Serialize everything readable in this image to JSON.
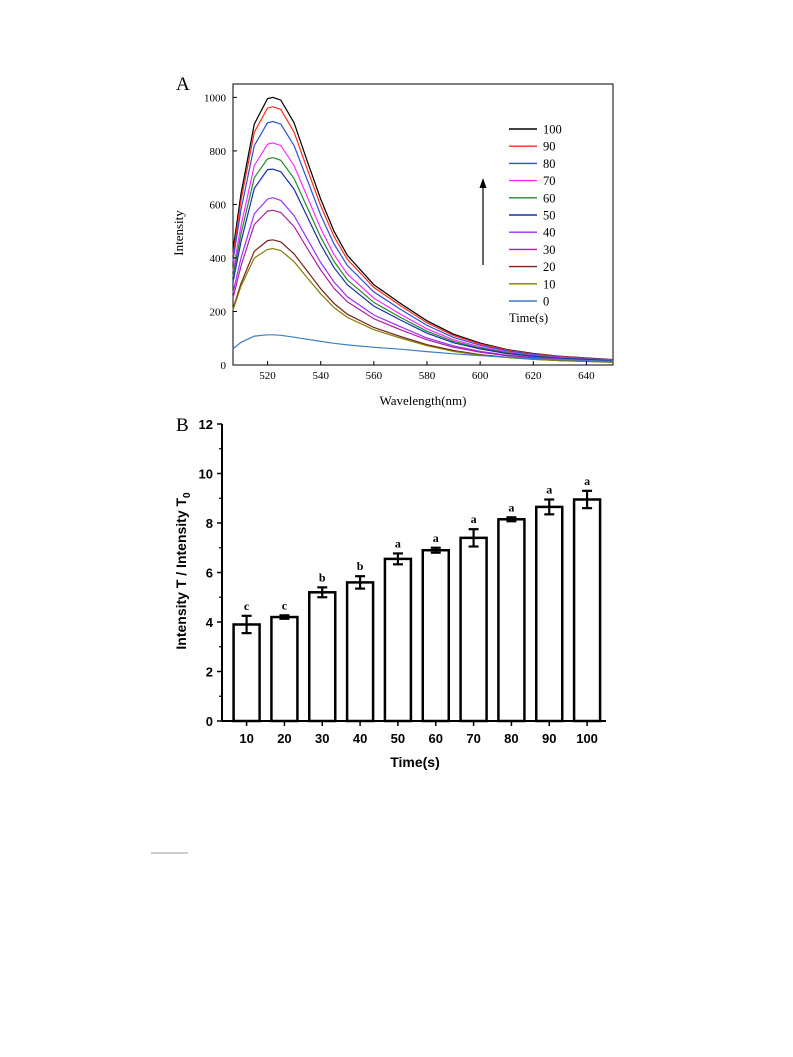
{
  "chart_data": [
    {
      "panel_label": "A",
      "type": "line",
      "xlabel": "Wavelength(nm)",
      "ylabel": "Intensity",
      "xlim": [
        507,
        650
      ],
      "ylim": [
        0,
        1050
      ],
      "xticks": [
        520,
        540,
        560,
        580,
        600,
        620,
        640
      ],
      "yticks": [
        0,
        200,
        400,
        600,
        800,
        1000
      ],
      "grid": false,
      "legend_title": "Time(s)",
      "legend_position": "top-right",
      "arrow_direction": "up",
      "x": [
        507,
        510,
        515,
        520,
        522,
        525,
        530,
        535,
        540,
        545,
        550,
        560,
        570,
        580,
        590,
        600,
        610,
        620,
        630,
        640,
        650
      ],
      "series": [
        {
          "name": "100",
          "color": "#000000",
          "values": [
            430,
            640,
            900,
            995,
            1000,
            990,
            905,
            760,
            620,
            500,
            410,
            300,
            230,
            165,
            115,
            82,
            58,
            43,
            33,
            26,
            20
          ]
        },
        {
          "name": "90",
          "color": "#ff2a1f",
          "values": [
            410,
            615,
            870,
            960,
            965,
            955,
            870,
            730,
            595,
            480,
            395,
            290,
            222,
            158,
            110,
            79,
            56,
            41,
            32,
            25,
            19
          ]
        },
        {
          "name": "80",
          "color": "#2b4fd6",
          "values": [
            390,
            580,
            820,
            905,
            910,
            900,
            820,
            690,
            560,
            452,
            372,
            273,
            208,
            148,
            103,
            74,
            53,
            39,
            30,
            24,
            18
          ]
        },
        {
          "name": "70",
          "color": "#ff2bff",
          "values": [
            350,
            520,
            745,
            825,
            830,
            820,
            745,
            627,
            510,
            412,
            340,
            250,
            190,
            135,
            94,
            68,
            49,
            36,
            28,
            22,
            17
          ]
        },
        {
          "name": "60",
          "color": "#1f8a2a",
          "values": [
            330,
            490,
            700,
            770,
            775,
            765,
            697,
            587,
            478,
            387,
            318,
            234,
            178,
            126,
            88,
            64,
            46,
            34,
            26,
            21,
            16
          ]
        },
        {
          "name": "50",
          "color": "#1c2fa8",
          "values": [
            310,
            460,
            660,
            730,
            732,
            722,
            657,
            553,
            450,
            364,
            300,
            220,
            168,
            119,
            83,
            60,
            43,
            32,
            25,
            20,
            15
          ]
        },
        {
          "name": "40",
          "color": "#9b30ff",
          "values": [
            270,
            400,
            565,
            620,
            625,
            615,
            558,
            470,
            383,
            310,
            255,
            187,
            143,
            101,
            71,
            51,
            37,
            28,
            22,
            17,
            13
          ]
        },
        {
          "name": "30",
          "color": "#b0209a",
          "values": [
            250,
            370,
            525,
            575,
            578,
            570,
            517,
            435,
            355,
            287,
            236,
            173,
            132,
            94,
            66,
            48,
            35,
            26,
            20,
            16,
            12
          ]
        },
        {
          "name": "20",
          "color": "#7a1f1f",
          "values": [
            210,
            305,
            425,
            465,
            468,
            460,
            415,
            350,
            285,
            230,
            190,
            140,
            107,
            76,
            54,
            39,
            29,
            22,
            17,
            14,
            11
          ]
        },
        {
          "name": "10",
          "color": "#7f7f00",
          "values": [
            205,
            295,
            400,
            432,
            435,
            428,
            386,
            325,
            266,
            215,
            178,
            132,
            101,
            72,
            51,
            37,
            28,
            21,
            16,
            13,
            10
          ]
        },
        {
          "name": "0",
          "color": "#3d7fc1",
          "values": [
            60,
            85,
            108,
            113,
            113,
            111,
            104,
            96,
            88,
            81,
            75,
            66,
            59,
            50,
            42,
            35,
            29,
            24,
            20,
            17,
            14
          ]
        }
      ]
    },
    {
      "panel_label": "B",
      "type": "bar",
      "xlabel": "Time(s)",
      "ylabel_main": "Intensity T / Intensity T",
      "ylabel_subscript": "0",
      "ylim": [
        0,
        12
      ],
      "yticks": [
        0,
        2,
        4,
        6,
        8,
        10,
        12
      ],
      "grid": false,
      "categories": [
        "10",
        "20",
        "30",
        "40",
        "50",
        "60",
        "70",
        "80",
        "90",
        "100"
      ],
      "values": [
        3.9,
        4.2,
        5.2,
        5.6,
        6.55,
        6.9,
        7.4,
        8.15,
        8.65,
        8.95
      ],
      "errors": [
        0.35,
        0.07,
        0.2,
        0.25,
        0.22,
        0.1,
        0.35,
        0.08,
        0.3,
        0.35
      ],
      "significance": [
        "c",
        "c",
        "b",
        "b",
        "a",
        "a",
        "a",
        "a",
        "a",
        "a"
      ],
      "bar_fill": "#ffffff",
      "bar_stroke": "#000000"
    }
  ]
}
